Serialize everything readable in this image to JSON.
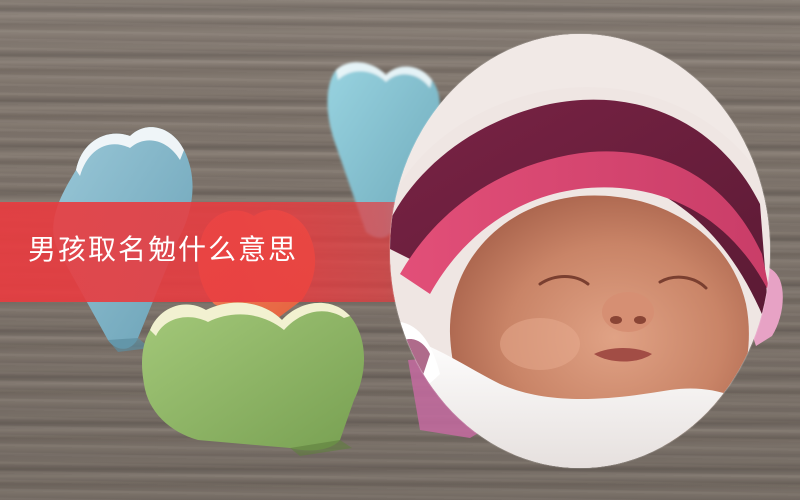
{
  "banner": {
    "title": "男孩取名勉什么意思"
  },
  "colors": {
    "banner_red": "#e83c40",
    "heart_blue": "#7fb3c7",
    "heart_teal": "#83c0d0",
    "heart_green": "#8fb665",
    "heart_orange": "#f0704b",
    "heart_pink": "#e7a2c5",
    "baby_skin": "#cc8a6e",
    "hat_pink": "#d84a74",
    "hat_maroon": "#74213f",
    "blanket_white": "#f7f4f3"
  },
  "image": {
    "subject": "sleeping-newborn-in-oval-frame"
  }
}
